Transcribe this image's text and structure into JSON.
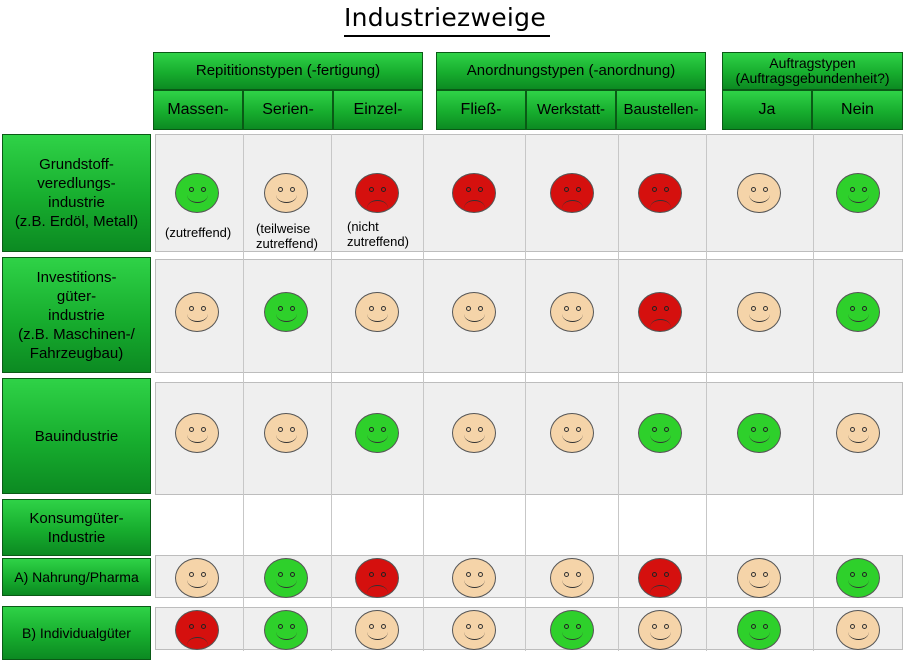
{
  "title": "Industriezweige",
  "groups": [
    {
      "label": "Repititionstypen (-fertigung)",
      "subs": [
        "Massen-",
        "Serien-",
        "Einzel-"
      ]
    },
    {
      "label": "Anordnungstypen (-anordnung)",
      "subs": [
        "Fließ-",
        "Werkstatt-",
        "Baustellen-"
      ]
    },
    {
      "label": "Auftragstypen\n(Auftragsgebundenheit?)",
      "subs": [
        "Ja",
        "Nein"
      ]
    }
  ],
  "rows": [
    {
      "label": "Grundstoff-\nveredlungs-\nindustrie\n(z.B. Erdöl, Metall)",
      "ratings": [
        "green",
        "beige",
        "red",
        "red",
        "red",
        "red",
        "beige",
        "green"
      ]
    },
    {
      "label": "Investitions-\ngüter-\nindustrie\n(z.B. Maschinen-/\nFahrzeugbau)",
      "ratings": [
        "beige",
        "green",
        "beige",
        "beige",
        "beige",
        "red",
        "beige",
        "green"
      ]
    },
    {
      "label": "Bauindustrie",
      "ratings": [
        "beige",
        "beige",
        "green",
        "beige",
        "beige",
        "green",
        "green",
        "beige"
      ]
    },
    {
      "label": "Konsumgüter-\nIndustrie",
      "ratings": []
    },
    {
      "label": "A) Nahrung/Pharma",
      "ratings": [
        "beige",
        "green",
        "red",
        "beige",
        "beige",
        "red",
        "beige",
        "green"
      ]
    },
    {
      "label": "B) Individualgüter",
      "ratings": [
        "red",
        "green",
        "beige",
        "beige",
        "green",
        "beige",
        "green",
        "beige"
      ]
    }
  ],
  "legend": {
    "green": "(zutreffend)",
    "beige": "(teilweise\nzutreffend)",
    "red": "(nicht\nzutreffend)"
  },
  "colors": {
    "green": "#2ed02b",
    "beige": "#f5d4a9",
    "red": "#d5100e",
    "header": "#17ad2e"
  }
}
